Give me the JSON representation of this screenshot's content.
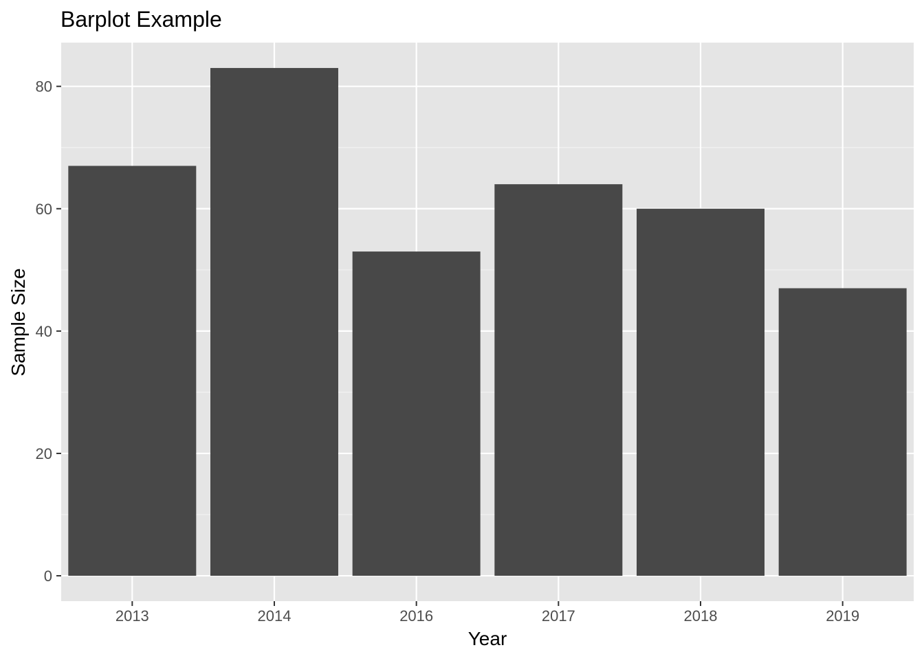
{
  "colors": {
    "panel_background": "#e5e5e5",
    "grid_major": "#ffffff",
    "grid_minor": "#f2f2f2",
    "bar_fill": "#484848",
    "tick_color": "#333333",
    "tick_label": "#4d4d4d"
  },
  "chart_data": {
    "type": "bar",
    "title": "Barplot Example",
    "xlabel": "Year",
    "ylabel": "Sample Size",
    "categories": [
      "2013",
      "2014",
      "2016",
      "2017",
      "2018",
      "2019"
    ],
    "values": [
      67,
      83,
      53,
      64,
      60,
      47
    ],
    "ylim": [
      -4.15,
      87.15
    ],
    "yticks": [
      0,
      20,
      40,
      60,
      80
    ],
    "ytick_labels": [
      "0",
      "20",
      "40",
      "60",
      "80"
    ],
    "grid": true,
    "legend": "none"
  }
}
